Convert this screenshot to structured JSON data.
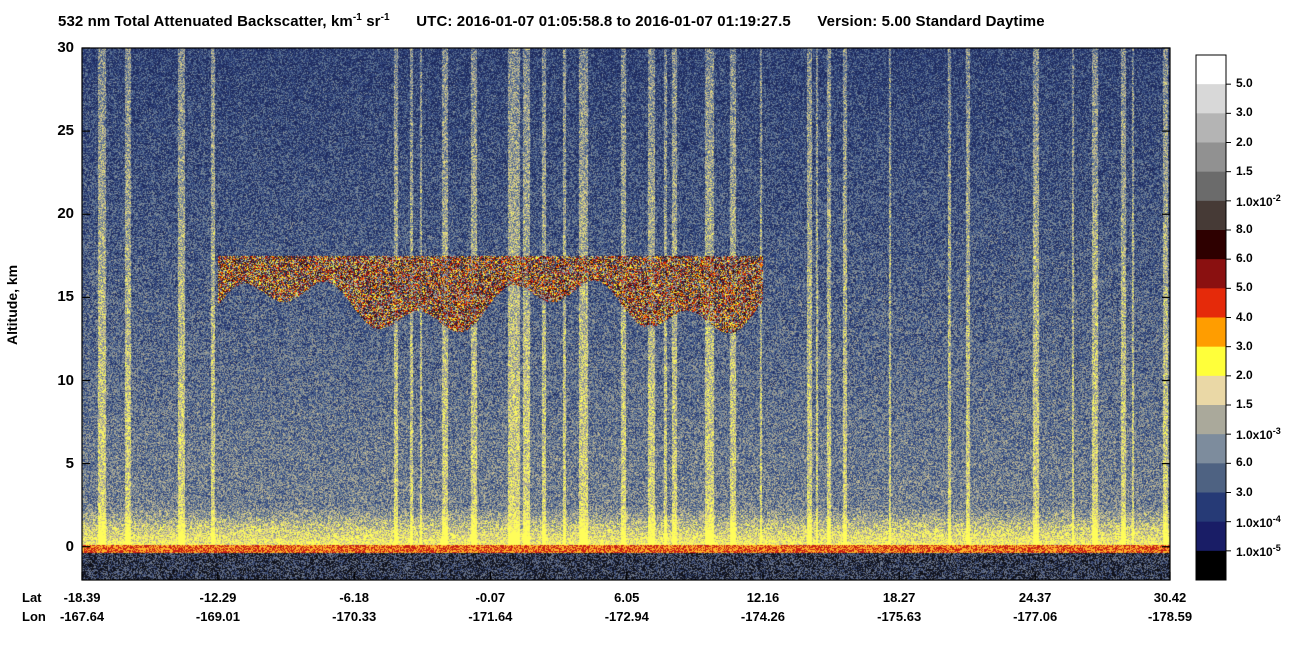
{
  "title": {
    "quantity": "532 nm Total Attenuated Backscatter, km",
    "sup1": "-1",
    "sr": " sr",
    "sup2": "-1",
    "utc_label": "UTC:",
    "utc_start": "2016-01-07 01:05:58.8",
    "to": "to",
    "utc_end": "2016-01-07 01:19:27.5",
    "version": "Version: 5.00",
    "product": "Standard",
    "mode": "Daytime"
  },
  "chart_data": {
    "type": "heatmap",
    "ylabel": "Altitude, km",
    "ylim": [
      -2,
      30
    ],
    "yticks": [
      "0",
      "5",
      "10",
      "15",
      "20",
      "25",
      "30"
    ],
    "row_labels": [
      "Lat",
      "Lon"
    ],
    "xticks": [
      {
        "lat": "-18.39",
        "lon": "-167.64"
      },
      {
        "lat": "-12.29",
        "lon": "-169.01"
      },
      {
        "lat": "-6.18",
        "lon": "-170.33"
      },
      {
        "lat": "-0.07",
        "lon": "-171.64"
      },
      {
        "lat": "6.05",
        "lon": "-172.94"
      },
      {
        "lat": "12.16",
        "lon": "-174.26"
      },
      {
        "lat": "18.27",
        "lon": "-175.63"
      },
      {
        "lat": "24.37",
        "lon": "-177.06"
      },
      {
        "lat": "30.42",
        "lon": "-178.59"
      }
    ],
    "features": {
      "cirrus_layer": {
        "lat_range": [
          -12.29,
          12.16
        ],
        "altitude_km": [
          12,
          17.5
        ]
      },
      "surface_altitude_km": 0
    },
    "colorbar": {
      "labels": [
        "5.0",
        "3.0",
        "2.0",
        "1.5",
        "1.0x10",
        "8.0",
        "6.0",
        "5.0",
        "4.0",
        "3.0",
        "2.0",
        "1.5",
        "1.0x10",
        "6.0",
        "3.0",
        "1.0x10",
        "1.0x10"
      ],
      "exponents": [
        "",
        "",
        "",
        "",
        "-2",
        "",
        "",
        "",
        "",
        "",
        "",
        "",
        "-3",
        "",
        "",
        "-4",
        "-5"
      ],
      "colors": [
        "#ffffff",
        "#d8d8d8",
        "#b4b4b4",
        "#919191",
        "#6b6b6b",
        "#463a36",
        "#2e0000",
        "#8a1010",
        "#e52a0a",
        "#ff9d00",
        "#ffff3a",
        "#ead8a6",
        "#aaa99b",
        "#7d8c9d",
        "#4e6282",
        "#263a76",
        "#191d66",
        "#000000"
      ]
    }
  }
}
